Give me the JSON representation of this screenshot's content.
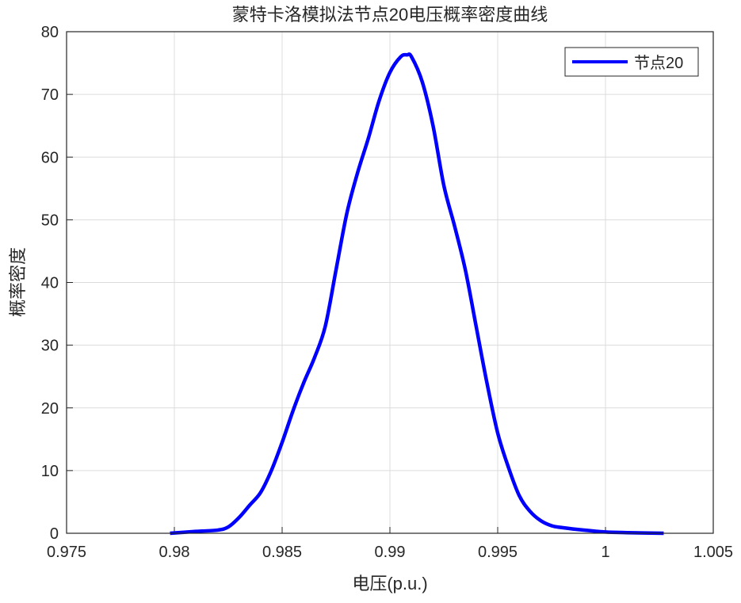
{
  "chart_data": {
    "type": "line",
    "title": "蒙特卡洛模拟法节点20电压概率密度曲线",
    "xlabel": "电压(p.u.)",
    "ylabel": "概率密度",
    "xlim": [
      0.975,
      1.005
    ],
    "ylim": [
      0,
      80
    ],
    "xticks": [
      "0.975",
      "0.98",
      "0.985",
      "0.99",
      "0.995",
      "1",
      "1.005"
    ],
    "yticks": [
      "0",
      "10",
      "20",
      "30",
      "40",
      "50",
      "60",
      "70",
      "80"
    ],
    "grid": true,
    "legend_position": "top-right",
    "series": [
      {
        "name": "节点20",
        "color": "#0000ff",
        "x": [
          0.9798,
          0.981,
          0.982,
          0.9825,
          0.983,
          0.9835,
          0.984,
          0.9845,
          0.985,
          0.9855,
          0.986,
          0.9865,
          0.987,
          0.9875,
          0.988,
          0.9885,
          0.989,
          0.9895,
          0.99,
          0.9905,
          0.9908,
          0.991,
          0.9915,
          0.992,
          0.9925,
          0.993,
          0.9935,
          0.994,
          0.9945,
          0.995,
          0.9955,
          0.996,
          0.9965,
          0.997,
          0.9975,
          0.998,
          0.999,
          1.0,
          1.001,
          1.0027
        ],
        "y": [
          0,
          0.3,
          0.5,
          1,
          2.5,
          4.5,
          6.5,
          10,
          14.5,
          19.5,
          24,
          28,
          33,
          42,
          51,
          57.5,
          63,
          69,
          73.5,
          76,
          76.3,
          76,
          72,
          65,
          55.5,
          49,
          42,
          33,
          24,
          16,
          10.5,
          6,
          3.5,
          2,
          1.2,
          0.9,
          0.5,
          0.2,
          0.1,
          0
        ]
      }
    ]
  }
}
